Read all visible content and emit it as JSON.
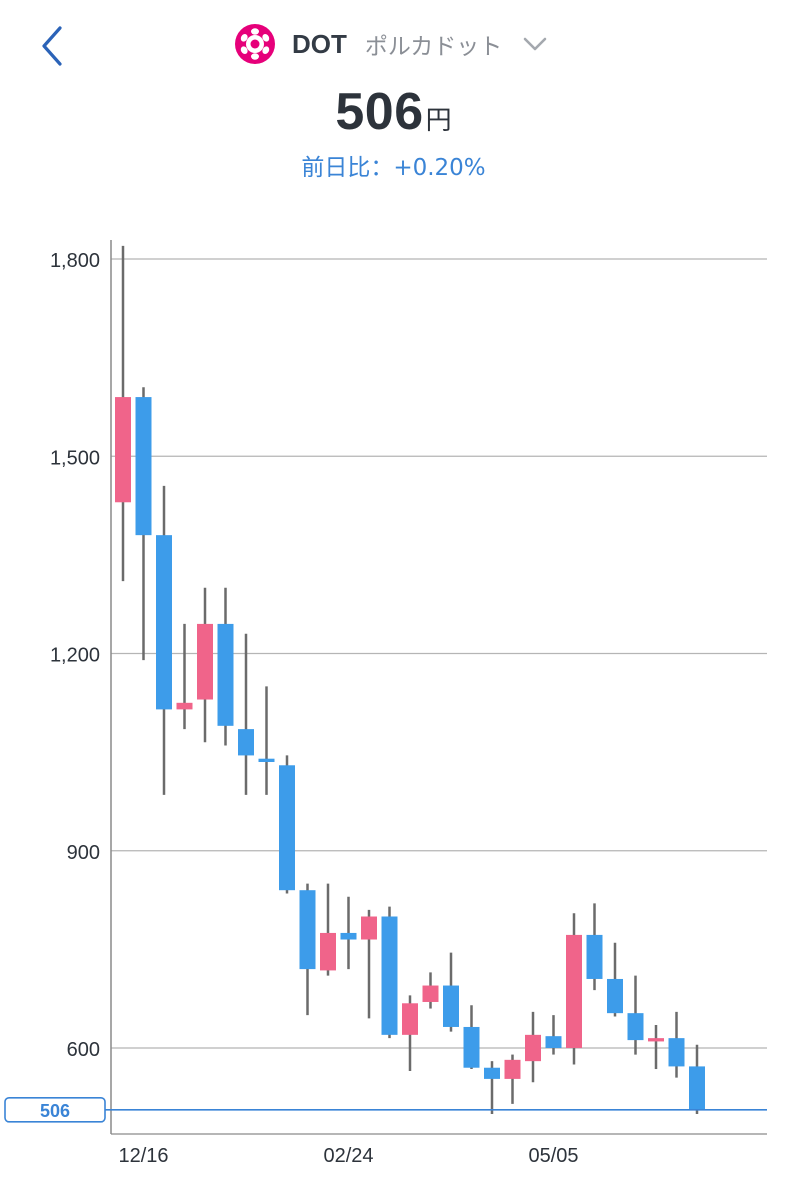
{
  "header": {
    "symbol": "DOT",
    "name_jp": "ポルカドット",
    "price": "506",
    "price_unit": "円",
    "change_label": "前日比：+0.20%",
    "icons": [
      "back-chevron-icon",
      "polkadot-logo-icon",
      "dropdown-chevron-icon"
    ]
  },
  "colors": {
    "up": "#f0648a",
    "down": "#3d9cea",
    "wick": "#6b6b6b",
    "grid": "#b5b5b5",
    "accent": "#3a84d6",
    "logo": "#e6007a"
  },
  "chart_data": {
    "type": "candlestick",
    "ylim": [
      500,
      1800
    ],
    "yticks": [
      600,
      900,
      1200,
      1500,
      1800
    ],
    "ytick_labels": [
      "600",
      "900",
      "1,200",
      "1,500",
      "1,800"
    ],
    "xtick_labels": [
      {
        "index": 1,
        "label": "12/16"
      },
      {
        "index": 11,
        "label": "02/24"
      },
      {
        "index": 21,
        "label": "05/05"
      }
    ],
    "current_price_label": "506",
    "current_price": 506,
    "candles": [
      {
        "open": 1430,
        "high": 1820,
        "low": 1310,
        "close": 1590
      },
      {
        "open": 1590,
        "high": 1605,
        "low": 1190,
        "close": 1380
      },
      {
        "open": 1380,
        "high": 1455,
        "low": 985,
        "close": 1115
      },
      {
        "open": 1115,
        "high": 1245,
        "low": 1085,
        "close": 1125
      },
      {
        "open": 1130,
        "high": 1300,
        "low": 1065,
        "close": 1245
      },
      {
        "open": 1245,
        "high": 1300,
        "low": 1060,
        "close": 1090
      },
      {
        "open": 1085,
        "high": 1230,
        "low": 985,
        "close": 1045
      },
      {
        "open": 1040,
        "high": 1150,
        "low": 985,
        "close": 1035
      },
      {
        "open": 1030,
        "high": 1045,
        "low": 835,
        "close": 840
      },
      {
        "open": 840,
        "high": 850,
        "low": 650,
        "close": 720
      },
      {
        "open": 718,
        "high": 850,
        "low": 710,
        "close": 775
      },
      {
        "open": 775,
        "high": 830,
        "low": 720,
        "close": 765
      },
      {
        "open": 765,
        "high": 810,
        "low": 645,
        "close": 800
      },
      {
        "open": 800,
        "high": 815,
        "low": 615,
        "close": 620
      },
      {
        "open": 620,
        "high": 680,
        "low": 565,
        "close": 668
      },
      {
        "open": 670,
        "high": 715,
        "low": 660,
        "close": 695
      },
      {
        "open": 695,
        "high": 745,
        "low": 625,
        "close": 632
      },
      {
        "open": 632,
        "high": 665,
        "low": 568,
        "close": 570
      },
      {
        "open": 570,
        "high": 580,
        "low": 495,
        "close": 553
      },
      {
        "open": 553,
        "high": 590,
        "low": 515,
        "close": 582
      },
      {
        "open": 580,
        "high": 655,
        "low": 548,
        "close": 620
      },
      {
        "open": 618,
        "high": 650,
        "low": 590,
        "close": 600
      },
      {
        "open": 600,
        "high": 805,
        "low": 575,
        "close": 772
      },
      {
        "open": 772,
        "high": 820,
        "low": 688,
        "close": 705
      },
      {
        "open": 705,
        "high": 760,
        "low": 648,
        "close": 653
      },
      {
        "open": 653,
        "high": 710,
        "low": 590,
        "close": 612
      },
      {
        "open": 610,
        "high": 635,
        "low": 568,
        "close": 615
      },
      {
        "open": 615,
        "high": 655,
        "low": 555,
        "close": 572
      },
      {
        "open": 572,
        "high": 605,
        "low": 492,
        "close": 506
      }
    ]
  }
}
